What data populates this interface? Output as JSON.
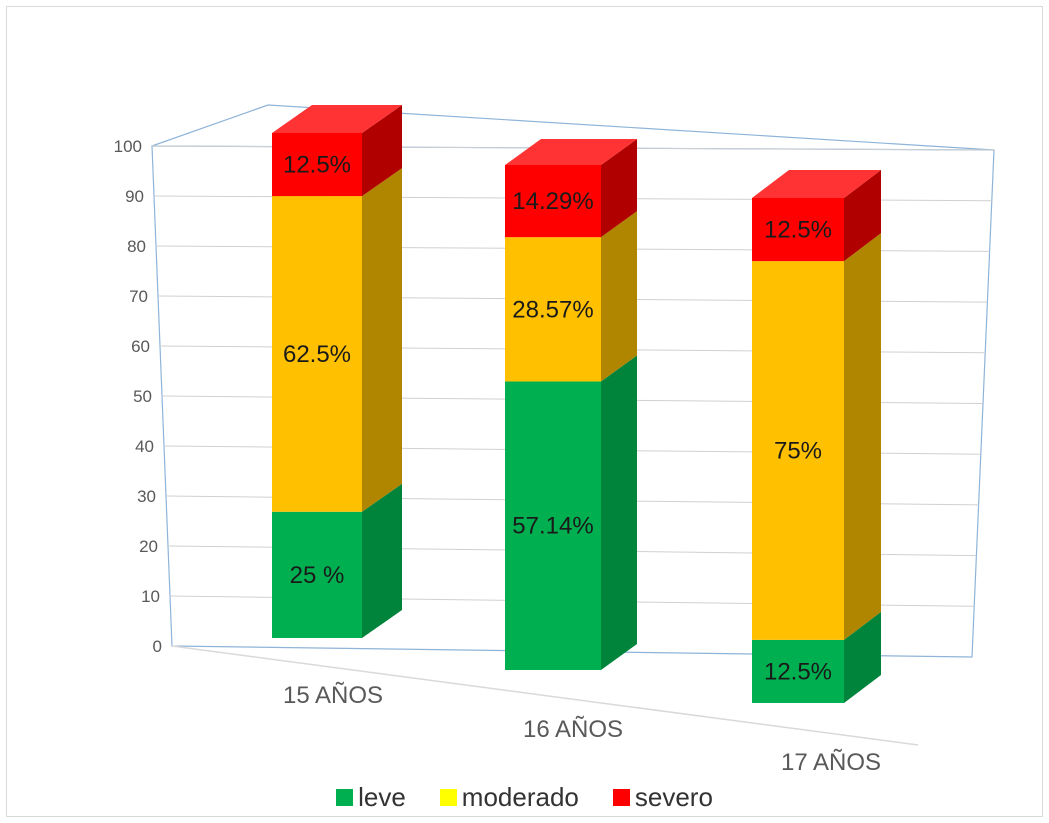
{
  "chart_data": {
    "type": "bar",
    "stacked": true,
    "three_d": true,
    "categories": [
      "15 AÑOS",
      "16 AÑOS",
      "17 AÑOS"
    ],
    "series": [
      {
        "name": "leve",
        "values": [
          25,
          57.14,
          12.5
        ],
        "labels": [
          "25  %",
          "57.14%",
          "12.5%"
        ],
        "color": "#00b050",
        "side_color": "#00843c",
        "top_color": "#00c058"
      },
      {
        "name": "moderado",
        "values": [
          62.5,
          28.57,
          75
        ],
        "labels": [
          "62.5%",
          "28.57%",
          "75%"
        ],
        "color": "#ffc000",
        "side_color": "#b08500",
        "top_color": "#ffd040"
      },
      {
        "name": "severo",
        "values": [
          12.5,
          14.29,
          12.5
        ],
        "labels": [
          "12.5%",
          "14.29%",
          "12.5%"
        ],
        "color": "#ff0000",
        "side_color": "#b00000",
        "top_color": "#ff3333"
      }
    ],
    "ylim": [
      0,
      100
    ],
    "yticks": [
      "0",
      "10",
      "20",
      "30",
      "40",
      "50",
      "60",
      "70",
      "80",
      "90",
      "100"
    ],
    "grid": true,
    "legend_position": "bottom",
    "legend_swatch_colors": [
      "#00b050",
      "#ffff00",
      "#ff0000"
    ],
    "title": "",
    "xlabel": "",
    "ylabel": ""
  }
}
